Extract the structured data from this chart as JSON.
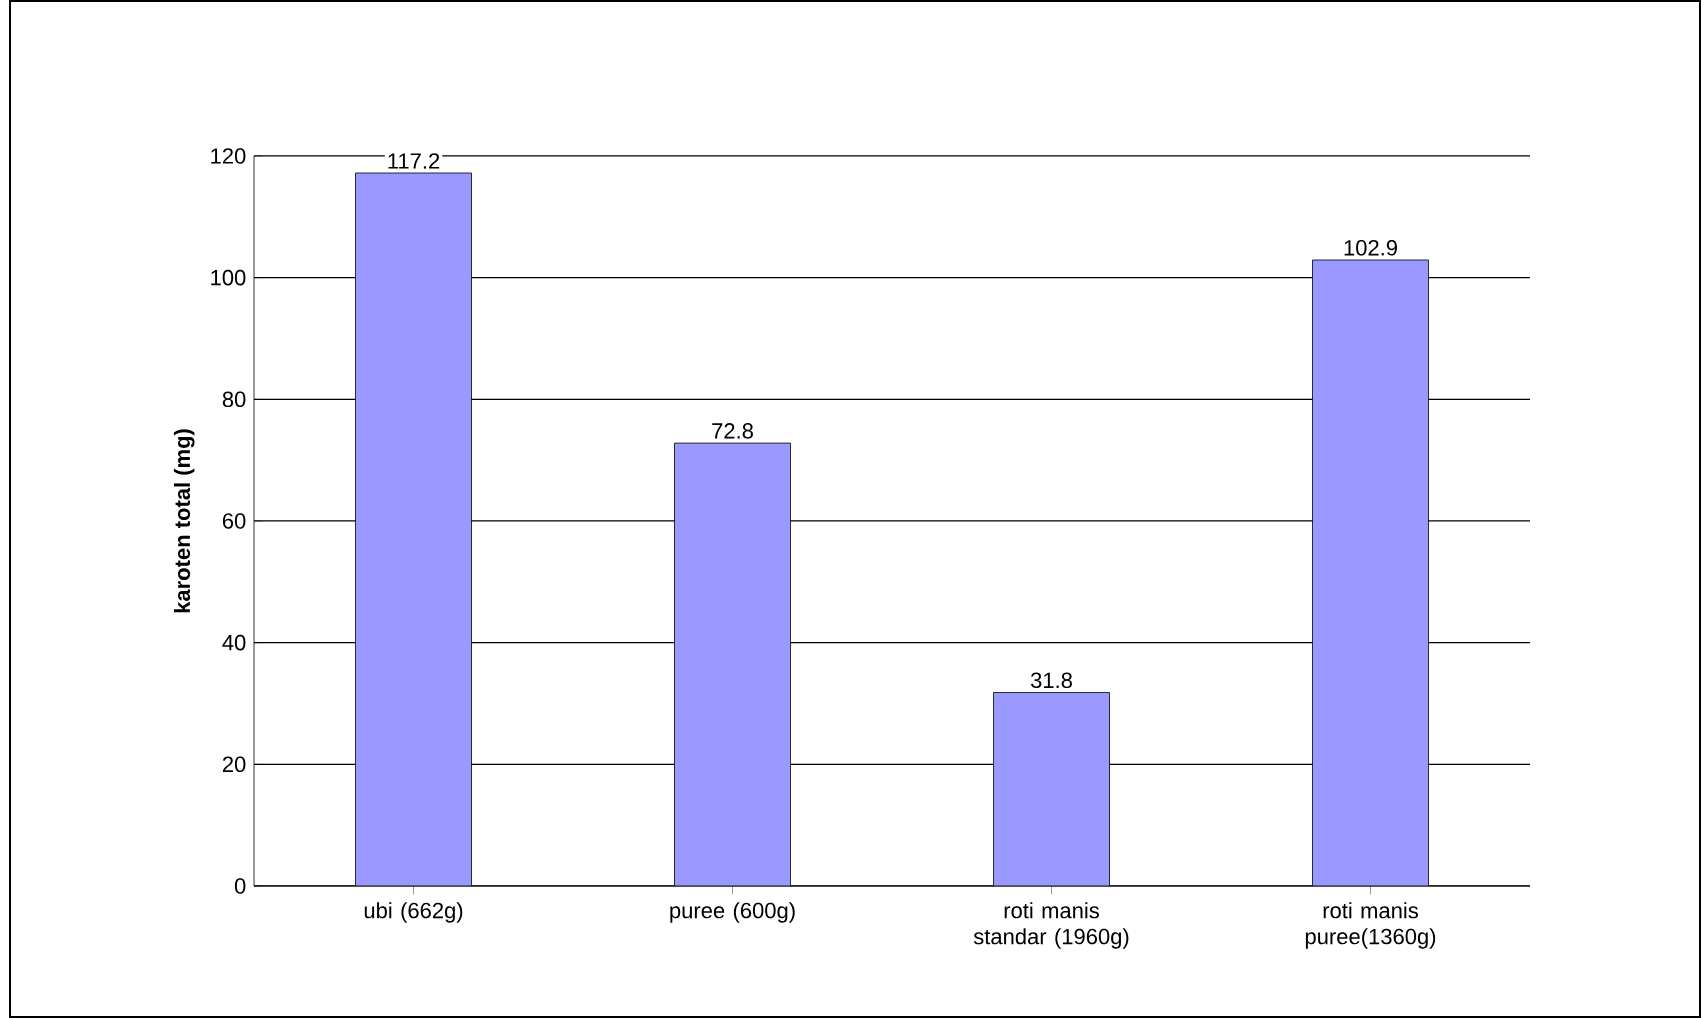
{
  "chart_data": {
    "type": "bar",
    "ylabel": "karoten total (mg)",
    "categories": [
      "ubi (662g)",
      "puree (600g)",
      "roti manis standar (1960g)",
      "roti manis puree(1360g)"
    ],
    "values": [
      117.2,
      72.8,
      31.8,
      102.9
    ],
    "color": "#9999ff",
    "ylim": [
      0,
      120
    ],
    "yticks": [
      0,
      20,
      40,
      60,
      80,
      100,
      120
    ],
    "grid": "y",
    "data_labels": true
  }
}
